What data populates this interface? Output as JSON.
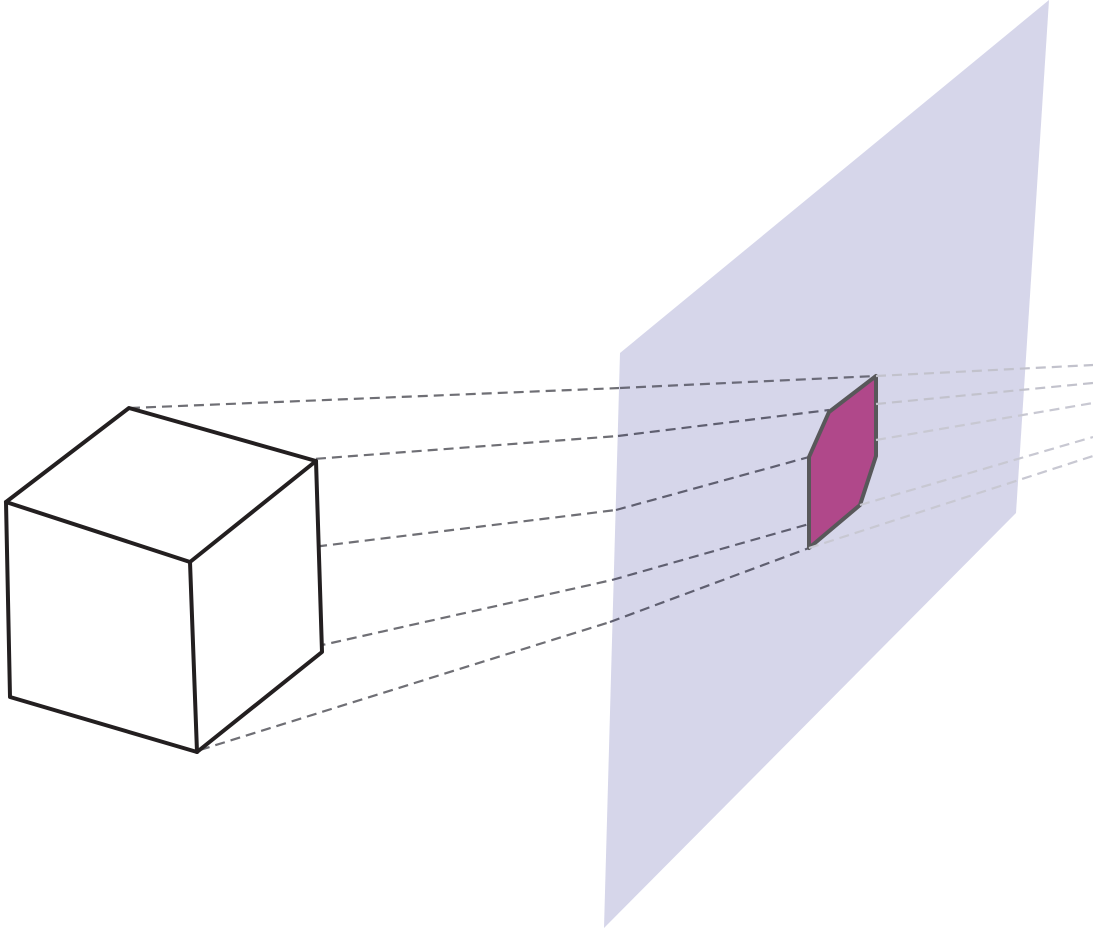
{
  "diagram": {
    "kind": "orthographic-projection",
    "objects": [
      {
        "id": "cube",
        "shape": "cube",
        "fill": "#ffffff",
        "stroke": "#231f20"
      },
      {
        "id": "projection-plane",
        "shape": "plane",
        "fill": "#d6d6ea"
      },
      {
        "id": "projected-shadow",
        "shape": "hexagon",
        "fill": "#b0488a",
        "stroke": "#58585a"
      }
    ],
    "rays": {
      "count": 5,
      "style": "dashed",
      "color": "#7a7a80"
    },
    "labels": []
  }
}
